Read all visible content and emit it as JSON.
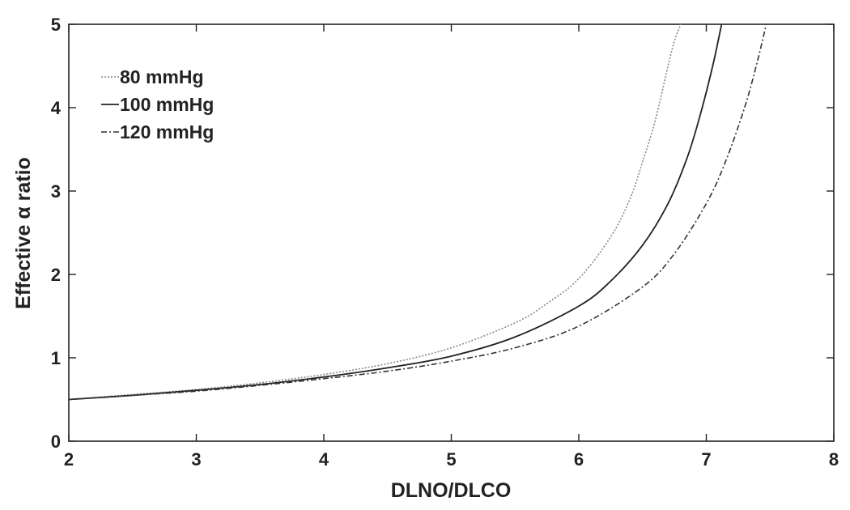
{
  "chart_data": {
    "type": "line",
    "title": "",
    "xlabel": "DLNO/DLCO",
    "ylabel": "Effective α ratio",
    "xlim": [
      2,
      8
    ],
    "ylim": [
      0,
      5
    ],
    "xticks": [
      2,
      3,
      4,
      5,
      6,
      7,
      8
    ],
    "yticks": [
      0,
      1,
      2,
      3,
      4,
      5
    ],
    "grid": false,
    "legend_position": "top-left",
    "series": [
      {
        "name": "80 mmHg",
        "style": "dotted",
        "color": "#8a8a8a",
        "x": [
          2.0,
          2.5,
          3.0,
          3.5,
          4.0,
          4.5,
          5.0,
          5.5,
          5.75,
          6.0,
          6.25,
          6.4,
          6.5,
          6.6,
          6.7,
          6.75,
          6.8
        ],
        "y": [
          0.5,
          0.56,
          0.62,
          0.7,
          0.8,
          0.93,
          1.12,
          1.42,
          1.65,
          1.95,
          2.45,
          2.9,
          3.35,
          3.85,
          4.5,
          4.8,
          5.0
        ]
      },
      {
        "name": "100 mmHg",
        "style": "solid",
        "color": "#222222",
        "x": [
          2.0,
          2.5,
          3.0,
          3.5,
          4.0,
          4.5,
          5.0,
          5.5,
          6.0,
          6.25,
          6.5,
          6.7,
          6.85,
          6.95,
          7.05,
          7.12
        ],
        "y": [
          0.5,
          0.55,
          0.61,
          0.68,
          0.77,
          0.88,
          1.02,
          1.25,
          1.62,
          1.92,
          2.35,
          2.85,
          3.4,
          3.9,
          4.5,
          5.0
        ]
      },
      {
        "name": "120 mmHg",
        "style": "dashdot",
        "color": "#333333",
        "x": [
          2.0,
          2.5,
          3.0,
          3.5,
          4.0,
          4.5,
          5.0,
          5.5,
          6.0,
          6.5,
          6.75,
          7.0,
          7.15,
          7.3,
          7.4,
          7.47
        ],
        "y": [
          0.5,
          0.55,
          0.6,
          0.67,
          0.75,
          0.84,
          0.96,
          1.12,
          1.38,
          1.85,
          2.25,
          2.85,
          3.35,
          4.0,
          4.55,
          5.0
        ]
      }
    ]
  }
}
